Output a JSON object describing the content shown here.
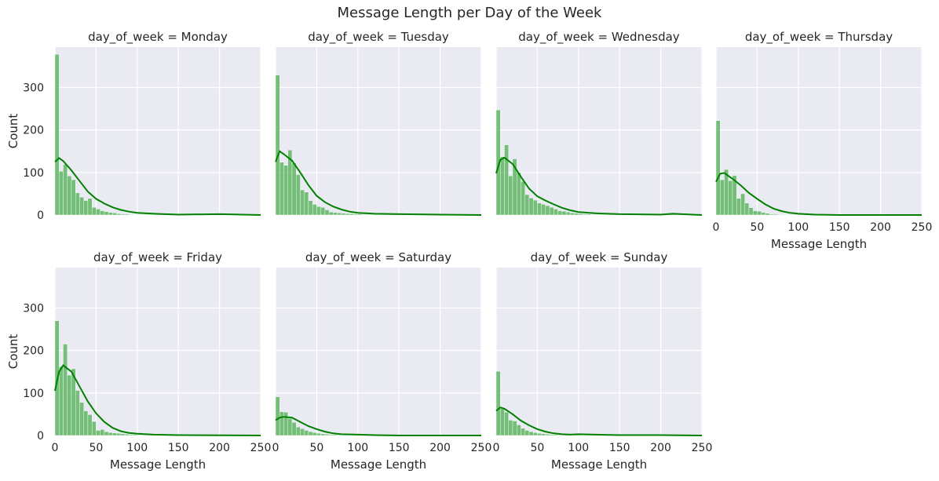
{
  "figure": {
    "title": "Message Length per Day of the Week"
  },
  "chart_data": {
    "type": "histogram",
    "title": "Message Length per Day of the Week",
    "facet_variable": "day_of_week",
    "xlabel": "Message Length",
    "ylabel": "Count",
    "xlim": [
      0,
      250
    ],
    "ylim": [
      0,
      395
    ],
    "x_ticks": [
      0,
      50,
      100,
      150,
      200,
      250
    ],
    "y_ticks": [
      0,
      100,
      200,
      300
    ],
    "bin_width": 5,
    "grid": true,
    "kde": true,
    "colors": {
      "bar": "#4caf50",
      "kde": "#008000",
      "panel_bg": "#eaeaf2",
      "grid": "#ffffff"
    },
    "panels": [
      {
        "title": "day_of_week = Monday",
        "bins_start": 0,
        "counts": [
          378,
          103,
          119,
          92,
          83,
          52,
          42,
          34,
          39,
          18,
          14,
          10,
          8,
          6,
          5,
          3,
          2,
          2,
          1,
          1,
          1,
          1,
          1,
          1,
          1,
          1,
          1,
          1,
          1,
          1,
          1,
          1,
          1,
          1,
          1,
          1,
          1,
          1,
          1,
          1,
          1,
          0,
          1,
          1,
          1,
          1,
          0,
          0,
          0,
          0
        ],
        "kde": [
          [
            0,
            125
          ],
          [
            5,
            134
          ],
          [
            10,
            127
          ],
          [
            20,
            105
          ],
          [
            30,
            80
          ],
          [
            40,
            55
          ],
          [
            50,
            38
          ],
          [
            60,
            27
          ],
          [
            70,
            18
          ],
          [
            80,
            12
          ],
          [
            90,
            8
          ],
          [
            100,
            5
          ],
          [
            120,
            3
          ],
          [
            150,
            1
          ],
          [
            200,
            2
          ],
          [
            250,
            0
          ]
        ]
      },
      {
        "title": "day_of_week = Tuesday",
        "bins_start": 0,
        "counts": [
          329,
          124,
          117,
          153,
          122,
          95,
          59,
          54,
          34,
          25,
          20,
          18,
          12,
          7,
          6,
          5,
          4,
          3,
          3,
          2,
          2,
          1,
          1,
          1,
          1,
          1,
          1,
          1,
          1,
          1,
          1,
          1,
          1,
          1,
          1,
          1,
          1,
          1,
          1,
          1,
          1,
          1,
          1,
          1,
          1,
          1,
          0,
          0,
          0,
          0
        ],
        "kde": [
          [
            0,
            125
          ],
          [
            5,
            150
          ],
          [
            10,
            143
          ],
          [
            20,
            128
          ],
          [
            30,
            100
          ],
          [
            40,
            70
          ],
          [
            50,
            45
          ],
          [
            60,
            30
          ],
          [
            70,
            20
          ],
          [
            80,
            13
          ],
          [
            90,
            8
          ],
          [
            100,
            5
          ],
          [
            120,
            3
          ],
          [
            150,
            2
          ],
          [
            200,
            1
          ],
          [
            250,
            0
          ]
        ]
      },
      {
        "title": "day_of_week = Wednesday",
        "bins_start": 0,
        "counts": [
          247,
          137,
          165,
          92,
          132,
          100,
          79,
          48,
          40,
          35,
          28,
          25,
          22,
          18,
          14,
          10,
          9,
          7,
          5,
          4,
          3,
          2,
          2,
          1,
          1,
          1,
          1,
          1,
          1,
          1,
          1,
          1,
          1,
          1,
          1,
          1,
          1,
          1,
          1,
          1,
          1,
          2,
          2,
          2,
          2,
          2,
          1,
          1,
          1,
          0
        ],
        "kde": [
          [
            0,
            98
          ],
          [
            5,
            130
          ],
          [
            10,
            135
          ],
          [
            20,
            120
          ],
          [
            30,
            90
          ],
          [
            40,
            62
          ],
          [
            50,
            44
          ],
          [
            60,
            34
          ],
          [
            70,
            25
          ],
          [
            80,
            17
          ],
          [
            90,
            11
          ],
          [
            100,
            7
          ],
          [
            120,
            4
          ],
          [
            150,
            2
          ],
          [
            200,
            1
          ],
          [
            215,
            3
          ],
          [
            250,
            0
          ]
        ]
      },
      {
        "title": "day_of_week = Thursday",
        "bins_start": 0,
        "counts": [
          222,
          83,
          107,
          81,
          93,
          39,
          50,
          28,
          17,
          10,
          9,
          6,
          4,
          2,
          2,
          1,
          1,
          1,
          1,
          1,
          1,
          1,
          1,
          0,
          0,
          0,
          0,
          0,
          0,
          0,
          0,
          0,
          0,
          0,
          0,
          0,
          0,
          0,
          0,
          0,
          0,
          0,
          0,
          0,
          0,
          0,
          0,
          0,
          0,
          0
        ],
        "kde": [
          [
            0,
            78
          ],
          [
            5,
            97
          ],
          [
            10,
            99
          ],
          [
            20,
            85
          ],
          [
            30,
            70
          ],
          [
            40,
            52
          ],
          [
            50,
            38
          ],
          [
            60,
            25
          ],
          [
            70,
            15
          ],
          [
            80,
            9
          ],
          [
            90,
            5
          ],
          [
            100,
            3
          ],
          [
            120,
            1
          ],
          [
            150,
            0
          ],
          [
            250,
            0
          ]
        ]
      },
      {
        "title": "day_of_week = Friday",
        "bins_start": 0,
        "counts": [
          270,
          162,
          215,
          142,
          157,
          106,
          78,
          58,
          49,
          33,
          12,
          14,
          9,
          7,
          6,
          5,
          4,
          3,
          2,
          2,
          1,
          1,
          1,
          1,
          1,
          1,
          1,
          1,
          1,
          1,
          1,
          1,
          1,
          1,
          1,
          1,
          1,
          1,
          1,
          1,
          1,
          1,
          1,
          1,
          1,
          1,
          1,
          0,
          0,
          0
        ],
        "kde": [
          [
            0,
            105
          ],
          [
            5,
            150
          ],
          [
            10,
            165
          ],
          [
            20,
            150
          ],
          [
            30,
            115
          ],
          [
            40,
            80
          ],
          [
            50,
            52
          ],
          [
            60,
            32
          ],
          [
            70,
            18
          ],
          [
            80,
            10
          ],
          [
            90,
            6
          ],
          [
            100,
            4
          ],
          [
            120,
            2
          ],
          [
            150,
            1
          ],
          [
            250,
            0
          ]
        ]
      },
      {
        "title": "day_of_week = Saturday",
        "bins_start": 0,
        "counts": [
          91,
          56,
          55,
          40,
          31,
          20,
          16,
          12,
          9,
          7,
          5,
          4,
          3,
          2,
          2,
          1,
          1,
          1,
          1,
          1,
          1,
          1,
          1,
          0,
          0,
          0,
          0,
          0,
          0,
          0,
          0,
          0,
          0,
          0,
          0,
          0,
          0,
          0,
          0,
          0,
          0,
          0,
          0,
          0,
          0,
          0,
          0,
          0,
          0,
          0
        ],
        "kde": [
          [
            0,
            36
          ],
          [
            5,
            42
          ],
          [
            10,
            44
          ],
          [
            20,
            42
          ],
          [
            30,
            32
          ],
          [
            40,
            22
          ],
          [
            50,
            15
          ],
          [
            60,
            9
          ],
          [
            70,
            5
          ],
          [
            80,
            3
          ],
          [
            100,
            2
          ],
          [
            120,
            1
          ],
          [
            150,
            0
          ],
          [
            250,
            0
          ]
        ]
      },
      {
        "title": "day_of_week = Sunday",
        "bins_start": 0,
        "counts": [
          151,
          63,
          55,
          36,
          34,
          25,
          17,
          12,
          9,
          7,
          5,
          4,
          3,
          2,
          2,
          1,
          1,
          1,
          1,
          4,
          1,
          1,
          1,
          1,
          1,
          1,
          1,
          1,
          1,
          1,
          1,
          1,
          1,
          1,
          1,
          1,
          1,
          1,
          1,
          0,
          0,
          0,
          0,
          0,
          0,
          0,
          0,
          0,
          0,
          0
        ],
        "kde": [
          [
            0,
            58
          ],
          [
            5,
            66
          ],
          [
            10,
            63
          ],
          [
            20,
            50
          ],
          [
            30,
            35
          ],
          [
            40,
            24
          ],
          [
            50,
            15
          ],
          [
            60,
            9
          ],
          [
            70,
            5
          ],
          [
            80,
            3
          ],
          [
            90,
            2
          ],
          [
            100,
            3
          ],
          [
            120,
            2
          ],
          [
            150,
            1
          ],
          [
            200,
            1
          ],
          [
            250,
            0
          ]
        ]
      }
    ]
  }
}
